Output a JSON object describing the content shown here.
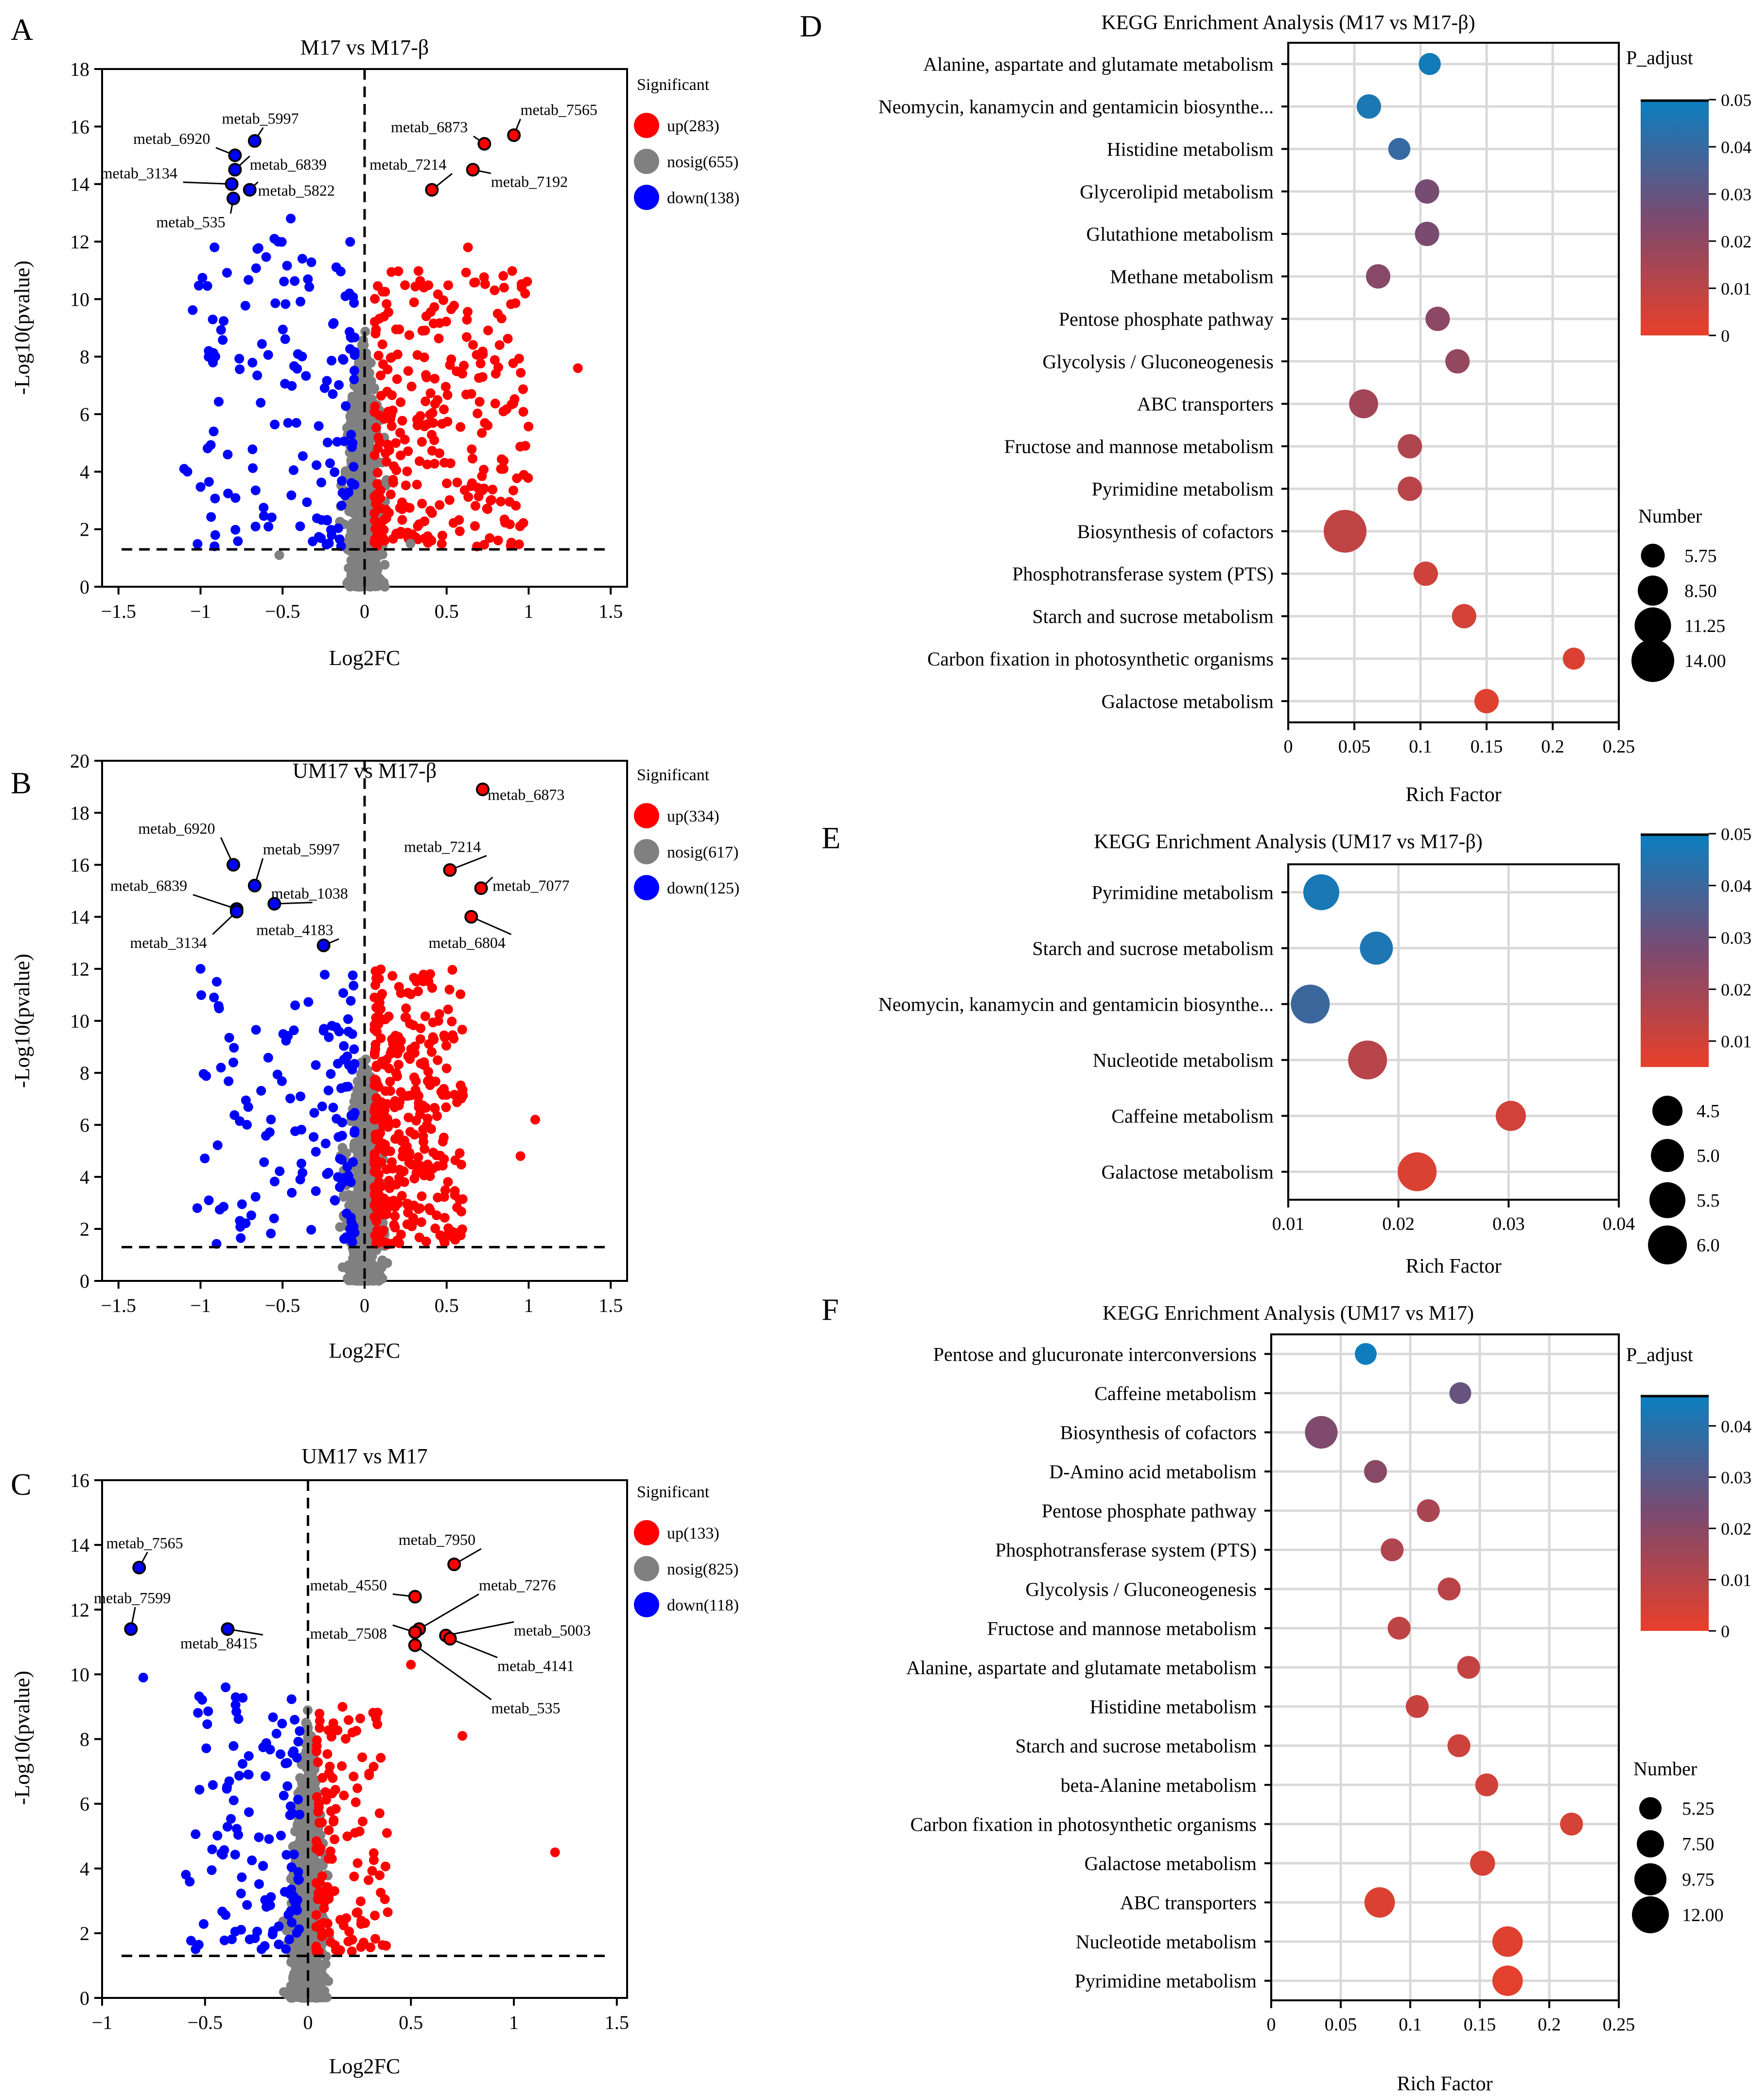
{
  "figure": {
    "panel_letters": [
      "A",
      "B",
      "C",
      "D",
      "E",
      "F"
    ],
    "colors": {
      "up": "#ff0000",
      "nosig": "#808080",
      "down": "#0000ff",
      "highlight_edge": "#000000",
      "gradient_low": "#e8402a",
      "gradient_mid": "#7a4a70",
      "gradient_high": "#0a7fc0",
      "grid": "#d9d9d9"
    }
  },
  "chart_data": [
    {
      "id": "A",
      "type": "scatter",
      "subtype": "volcano",
      "title": "M17 vs M17-β",
      "xlabel": "Log2FC",
      "ylabel": "-Log10(pvalue)",
      "xlim": [
        -1.6,
        1.6
      ],
      "ylim": [
        0,
        18
      ],
      "xticks": [
        -1.5,
        -1,
        -0.5,
        0,
        0.5,
        1,
        1.5
      ],
      "xtick_labels": [
        "−1.5",
        "−1",
        "−0.5",
        "0",
        "0.5",
        "1",
        "1.5"
      ],
      "yticks": [
        0,
        2,
        4,
        6,
        8,
        10,
        12,
        14,
        16,
        18
      ],
      "threshold_y": 1.3,
      "threshold_x": 0,
      "legend": {
        "title": "Significant",
        "entries": [
          {
            "label": "up(283)",
            "group": "up"
          },
          {
            "label": "nosig(655)",
            "group": "nosig"
          },
          {
            "label": "down(138)",
            "group": "down"
          }
        ]
      },
      "counts": {
        "up": 283,
        "nosig": 655,
        "down": 138
      },
      "cloud": {
        "nosig": {
          "x_mean": 0,
          "x_sd": 0.05,
          "x_min": -0.2,
          "x_max": 0.2,
          "y_max": 9
        },
        "up": {
          "x_min": 0.06,
          "x_max": 1.0,
          "y_max": 11
        },
        "down": {
          "x_min": -1.05,
          "x_max": -0.06,
          "y_max": 12
        }
      },
      "scatter_extra": [
        {
          "x": -1.08,
          "y": 4.0,
          "group": "down"
        },
        {
          "x": -1.1,
          "y": 4.1,
          "group": "down"
        },
        {
          "x": -0.95,
          "y": 8.2,
          "group": "down"
        },
        {
          "x": -0.92,
          "y": 5.4,
          "group": "down"
        },
        {
          "x": -0.55,
          "y": 12.1,
          "group": "down"
        },
        {
          "x": -0.45,
          "y": 12.8,
          "group": "down"
        },
        {
          "x": 1.3,
          "y": 7.6,
          "group": "up"
        },
        {
          "x": 0.98,
          "y": 4.9,
          "group": "up"
        },
        {
          "x": 0.85,
          "y": 10.4,
          "group": "up"
        },
        {
          "x": 0.63,
          "y": 11.8,
          "group": "up"
        },
        {
          "x": -0.52,
          "y": 1.1,
          "group": "nosig"
        },
        {
          "x": 0.28,
          "y": 1.5,
          "group": "nosig"
        }
      ],
      "highlights": [
        {
          "label": "metab_7565",
          "x": 0.91,
          "y": 15.7,
          "side": "up",
          "lx": 0.95,
          "ly": 16.4
        },
        {
          "label": "metab_6873",
          "x": 0.73,
          "y": 15.4,
          "side": "up",
          "lx": 0.16,
          "ly": 15.8
        },
        {
          "label": "metab_7214",
          "x": 0.41,
          "y": 13.8,
          "side": "up",
          "lx": 0.03,
          "ly": 14.5
        },
        {
          "label": "metab_7192",
          "x": 0.66,
          "y": 14.5,
          "side": "up",
          "lx": 0.77,
          "ly": 13.9
        },
        {
          "label": "metab_5997",
          "x": -0.67,
          "y": 15.5,
          "side": "down",
          "lx": -0.87,
          "ly": 16.1
        },
        {
          "label": "metab_6920",
          "x": -0.79,
          "y": 15.0,
          "side": "down",
          "lx": -1.41,
          "ly": 15.4
        },
        {
          "label": "metab_6839",
          "x": -0.79,
          "y": 14.5,
          "side": "down",
          "lx": -0.7,
          "ly": 14.5
        },
        {
          "label": "metab_3134",
          "x": -0.81,
          "y": 14.0,
          "side": "down",
          "lx": -1.61,
          "ly": 14.2
        },
        {
          "label": "metab_5822",
          "x": -0.7,
          "y": 13.8,
          "side": "down",
          "lx": -0.65,
          "ly": 13.6
        },
        {
          "label": "metab_535",
          "x": -0.8,
          "y": 13.5,
          "side": "down",
          "lx": -1.27,
          "ly": 12.5
        }
      ]
    },
    {
      "id": "B",
      "type": "scatter",
      "subtype": "volcano",
      "title": "UM17 vs M17-β",
      "xlabel": "Log2FC",
      "ylabel": "-Log10(pvalue)",
      "xlim": [
        -1.6,
        1.6
      ],
      "ylim": [
        0,
        20
      ],
      "xticks": [
        -1.5,
        -1,
        -0.5,
        0,
        0.5,
        1,
        1.5
      ],
      "xtick_labels": [
        "−1.5",
        "−1",
        "−0.5",
        "0",
        "0.5",
        "1",
        "1.5"
      ],
      "yticks": [
        0,
        2,
        4,
        6,
        8,
        10,
        12,
        14,
        16,
        18,
        20
      ],
      "threshold_y": 1.3,
      "threshold_x": 0,
      "legend": {
        "title": "Significant",
        "entries": [
          {
            "label": "up(334)",
            "group": "up"
          },
          {
            "label": "nosig(617)",
            "group": "nosig"
          },
          {
            "label": "down(125)",
            "group": "down"
          }
        ]
      },
      "counts": {
        "up": 334,
        "nosig": 617,
        "down": 125
      },
      "cloud": {
        "nosig": {
          "x_mean": 0,
          "x_sd": 0.05,
          "x_min": -0.22,
          "x_max": 0.22,
          "y_max": 9
        },
        "up": {
          "x_min": 0.06,
          "x_max": 0.6,
          "y_max": 12
        },
        "down": {
          "x_min": -1.0,
          "x_max": -0.06,
          "y_max": 12
        }
      },
      "scatter_extra": [
        {
          "x": -1.02,
          "y": 2.8,
          "group": "down"
        },
        {
          "x": -1.0,
          "y": 12.0,
          "group": "down"
        },
        {
          "x": -0.8,
          "y": 8.4,
          "group": "down"
        },
        {
          "x": 1.04,
          "y": 6.2,
          "group": "up"
        },
        {
          "x": 0.95,
          "y": 4.8,
          "group": "up"
        },
        {
          "x": 0.55,
          "y": 3.3,
          "group": "up"
        },
        {
          "x": 0.4,
          "y": 11.8,
          "group": "up"
        }
      ],
      "highlights": [
        {
          "label": "metab_6873",
          "x": 0.72,
          "y": 18.9,
          "side": "up",
          "lx": 0.75,
          "ly": 18.5
        },
        {
          "label": "metab_7214",
          "x": 0.52,
          "y": 15.8,
          "side": "up",
          "lx": 0.24,
          "ly": 16.5
        },
        {
          "label": "metab_7077",
          "x": 0.71,
          "y": 15.1,
          "side": "up",
          "lx": 0.78,
          "ly": 15.0
        },
        {
          "label": "metab_6804",
          "x": 0.65,
          "y": 14.0,
          "side": "up",
          "lx": 0.39,
          "ly": 12.8
        },
        {
          "label": "metab_6920",
          "x": -0.8,
          "y": 16.0,
          "side": "down",
          "lx": -1.38,
          "ly": 17.2
        },
        {
          "label": "metab_5997",
          "x": -0.67,
          "y": 15.2,
          "side": "down",
          "lx": -0.62,
          "ly": 16.4
        },
        {
          "label": "metab_6839",
          "x": -0.78,
          "y": 14.3,
          "side": "down",
          "lx": -1.55,
          "ly": 15.0
        },
        {
          "label": "metab_3134",
          "x": -0.78,
          "y": 14.2,
          "side": "down",
          "lx": -1.43,
          "ly": 12.8
        },
        {
          "label": "metab_1038",
          "x": -0.55,
          "y": 14.5,
          "side": "down",
          "lx": -0.57,
          "ly": 14.7
        },
        {
          "label": "metab_4183",
          "x": -0.25,
          "y": 12.9,
          "side": "down",
          "lx": -0.66,
          "ly": 13.3
        }
      ]
    },
    {
      "id": "C",
      "type": "scatter",
      "subtype": "volcano",
      "title": "UM17 vs M17",
      "xlabel": "Log2FC",
      "ylabel": "-Log10(pvalue)",
      "xlim": [
        -1.0,
        1.55
      ],
      "ylim": [
        0,
        16
      ],
      "xticks": [
        -1,
        -0.5,
        0,
        0.5,
        1,
        1.5
      ],
      "xtick_labels": [
        "−1",
        "−0.5",
        "0",
        "0.5",
        "1",
        "1.5"
      ],
      "yticks": [
        0,
        2,
        4,
        6,
        8,
        10,
        12,
        14,
        16
      ],
      "threshold_y": 1.3,
      "threshold_x": 0,
      "legend": {
        "title": "Significant",
        "entries": [
          {
            "label": "up(133)",
            "group": "up"
          },
          {
            "label": "nosig(825)",
            "group": "nosig"
          },
          {
            "label": "down(118)",
            "group": "down"
          }
        ]
      },
      "counts": {
        "up": 133,
        "nosig": 825,
        "down": 118
      },
      "cloud": {
        "nosig": {
          "x_mean": 0,
          "x_sd": 0.04,
          "x_min": -0.12,
          "x_max": 0.12,
          "y_max": 9
        },
        "up": {
          "x_min": 0.04,
          "x_max": 0.4,
          "y_max": 9
        },
        "down": {
          "x_min": -0.6,
          "x_max": -0.04,
          "y_max": 9.5
        }
      },
      "scatter_extra": [
        {
          "x": 1.2,
          "y": 4.5,
          "group": "up"
        },
        {
          "x": 0.75,
          "y": 8.1,
          "group": "up"
        },
        {
          "x": 0.5,
          "y": 10.3,
          "group": "up"
        },
        {
          "x": -0.8,
          "y": 9.9,
          "group": "down"
        },
        {
          "x": -0.4,
          "y": 9.6,
          "group": "down"
        }
      ],
      "highlights": [
        {
          "label": "metab_7950",
          "x": 0.71,
          "y": 13.4,
          "side": "up",
          "lx": 0.44,
          "ly": 14.0
        },
        {
          "label": "metab_4550",
          "x": 0.52,
          "y": 12.4,
          "side": "up",
          "lx": 0.01,
          "ly": 12.6
        },
        {
          "label": "metab_7276",
          "x": 0.54,
          "y": 11.4,
          "side": "up",
          "lx": 0.83,
          "ly": 12.6
        },
        {
          "label": "metab_7508",
          "x": 0.52,
          "y": 11.3,
          "side": "up",
          "lx": 0.01,
          "ly": 11.1
        },
        {
          "label": "metab_5003",
          "x": 0.67,
          "y": 11.2,
          "side": "up",
          "lx": 1.0,
          "ly": 11.2
        },
        {
          "label": "metab_4141",
          "x": 0.69,
          "y": 11.1,
          "side": "up",
          "lx": 0.92,
          "ly": 10.1
        },
        {
          "label": "metab_535",
          "x": 0.52,
          "y": 10.9,
          "side": "up",
          "lx": 0.89,
          "ly": 8.8
        },
        {
          "label": "metab_7565",
          "x": -0.82,
          "y": 13.3,
          "side": "down",
          "lx": -0.98,
          "ly": 13.9
        },
        {
          "label": "metab_7599",
          "x": -0.86,
          "y": 11.4,
          "side": "down",
          "lx": -1.04,
          "ly": 12.2
        },
        {
          "label": "metab_8415",
          "x": -0.39,
          "y": 11.4,
          "side": "down",
          "lx": -0.62,
          "ly": 10.8
        }
      ]
    },
    {
      "id": "D",
      "type": "scatter",
      "subtype": "bubble",
      "title": "KEGG Enrichment Analysis (M17 vs M17-β)",
      "xlabel": "Rich Factor",
      "xlim": [
        0,
        0.25
      ],
      "xticks": [
        0,
        0.05,
        0.1,
        0.15,
        0.2,
        0.25
      ],
      "xtick_labels": [
        "0",
        "0.05",
        "0.1",
        "0.15",
        "0.2",
        "0.25"
      ],
      "color_scale": {
        "title": "P_adjust",
        "min": 0,
        "max": 0.05,
        "ticks": [
          0,
          0.01,
          0.02,
          0.03,
          0.04,
          0.05
        ],
        "tick_labels": [
          "0",
          "0.01",
          "0.02",
          "0.03",
          "0.04",
          "0.05"
        ]
      },
      "size_legend": {
        "title": "Number",
        "values": [
          5.75,
          8.5,
          11.25,
          14.0
        ],
        "labels": [
          "5.75",
          "8.50",
          "11.25",
          "14.00"
        ],
        "min": 3,
        "max": 14
      },
      "categories": [
        "Alanine, aspartate and glutamate metabolism",
        "Neomycin, kanamycin and gentamicin biosynthe...",
        "Histidine metabolism",
        "Glycerolipid metabolism",
        "Glutathione metabolism",
        "Methane metabolism",
        "Pentose phosphate pathway",
        "Glycolysis / Gluconeogenesis",
        "ABC transporters",
        "Fructose and mannose metabolism",
        "Pyrimidine metabolism",
        "Biosynthesis of cofactors",
        "Phosphotransferase system (PTS)",
        "Starch and sucrose metabolism",
        "Carbon fixation in photosynthetic organisms",
        "Galactose metabolism"
      ],
      "x": [
        0.107,
        0.061,
        0.084,
        0.105,
        0.105,
        0.068,
        0.113,
        0.128,
        0.057,
        0.092,
        0.092,
        0.043,
        0.104,
        0.133,
        0.216,
        0.15
      ],
      "size": [
        5,
        6,
        5,
        6,
        6,
        6,
        6,
        6,
        8,
        6,
        6,
        14,
        6,
        6,
        5,
        6
      ],
      "color": [
        0.048,
        0.046,
        0.04,
        0.026,
        0.025,
        0.022,
        0.021,
        0.019,
        0.016,
        0.013,
        0.011,
        0.009,
        0.006,
        0.005,
        0.003,
        0.002
      ]
    },
    {
      "id": "E",
      "type": "scatter",
      "subtype": "bubble",
      "title": "KEGG Enrichment Analysis (UM17 vs M17-β)",
      "xlabel": "Rich Factor",
      "xlim": [
        0.01,
        0.04
      ],
      "xticks": [
        0.01,
        0.02,
        0.03,
        0.04
      ],
      "xtick_labels": [
        "0.01",
        "0.02",
        "0.03",
        "0.04"
      ],
      "color_scale": {
        "title": "",
        "min": 0.005,
        "max": 0.05,
        "ticks": [
          0.01,
          0.02,
          0.03,
          0.04,
          0.05
        ],
        "tick_labels": [
          "0.01",
          "0.02",
          "0.03",
          "0.04",
          "0.05"
        ]
      },
      "size_legend": {
        "title": "",
        "values": [
          4.5,
          5.0,
          5.5,
          6.0
        ],
        "labels": [
          "4.5",
          "5.0",
          "5.5",
          "6.0"
        ],
        "min": 4,
        "max": 6
      },
      "categories": [
        "Pyrimidine metabolism",
        "Starch and sucrose metabolism",
        "Neomycin, kanamycin and gentamicin biosynthe...",
        "Nucleotide metabolism",
        "Caffeine metabolism",
        "Galactose metabolism"
      ],
      "x": [
        0.013,
        0.018,
        0.012,
        0.0172,
        0.0302,
        0.0217
      ],
      "size": [
        5.5,
        5,
        6,
        6,
        4.5,
        6
      ],
      "color": [
        0.047,
        0.046,
        0.04,
        0.015,
        0.01,
        0.008
      ]
    },
    {
      "id": "F",
      "type": "scatter",
      "subtype": "bubble",
      "title": "KEGG Enrichment Analysis (UM17 vs M17)",
      "xlabel": "Rich Factor",
      "xlim": [
        0,
        0.25
      ],
      "xticks": [
        0,
        0.05,
        0.1,
        0.15,
        0.2,
        0.25
      ],
      "xtick_labels": [
        "0",
        "0.05",
        "0.1",
        "0.15",
        "0.2",
        "0.25"
      ],
      "color_scale": {
        "title": "P_adjust",
        "min": 0,
        "max": 0.046,
        "ticks": [
          0,
          0.01,
          0.02,
          0.03,
          0.04
        ],
        "tick_labels": [
          "0",
          "0.01",
          "0.02",
          "0.03",
          "0.04"
        ]
      },
      "size_legend": {
        "title": "Number",
        "values": [
          5.25,
          7.5,
          9.75,
          12.0
        ],
        "labels": [
          "5.25",
          "7.50",
          "9.75",
          "12.00"
        ],
        "min": 3,
        "max": 12
      },
      "categories": [
        "Pentose and glucuronate interconversions",
        "Caffeine metabolism",
        "Biosynthesis of cofactors",
        "D-Amino acid metabolism",
        "Pentose phosphate pathway",
        "Phosphotransferase system (PTS)",
        "Glycolysis / Gluconeogenesis",
        "Fructose and mannose metabolism",
        "Alanine, aspartate and glutamate metabolism",
        "Histidine metabolism",
        "Starch and sucrose metabolism",
        "beta-Alanine metabolism",
        "Carbon fixation in photosynthetic organisms",
        "Galactose metabolism",
        "ABC transporters",
        "Nucleotide metabolism",
        "Pyrimidine metabolism"
      ],
      "x": [
        0.068,
        0.136,
        0.036,
        0.075,
        0.113,
        0.087,
        0.128,
        0.092,
        0.142,
        0.105,
        0.135,
        0.155,
        0.216,
        0.152,
        0.078,
        0.17,
        0.17
      ],
      "size": [
        5,
        5,
        10,
        5.5,
        5.5,
        5.5,
        5.5,
        5.5,
        5.5,
        5.5,
        5.5,
        5.5,
        5.5,
        6.5,
        9,
        9,
        9
      ],
      "color": [
        0.045,
        0.027,
        0.022,
        0.02,
        0.013,
        0.012,
        0.01,
        0.009,
        0.008,
        0.007,
        0.006,
        0.005,
        0.004,
        0.004,
        0.003,
        0.002,
        0.001
      ]
    }
  ]
}
